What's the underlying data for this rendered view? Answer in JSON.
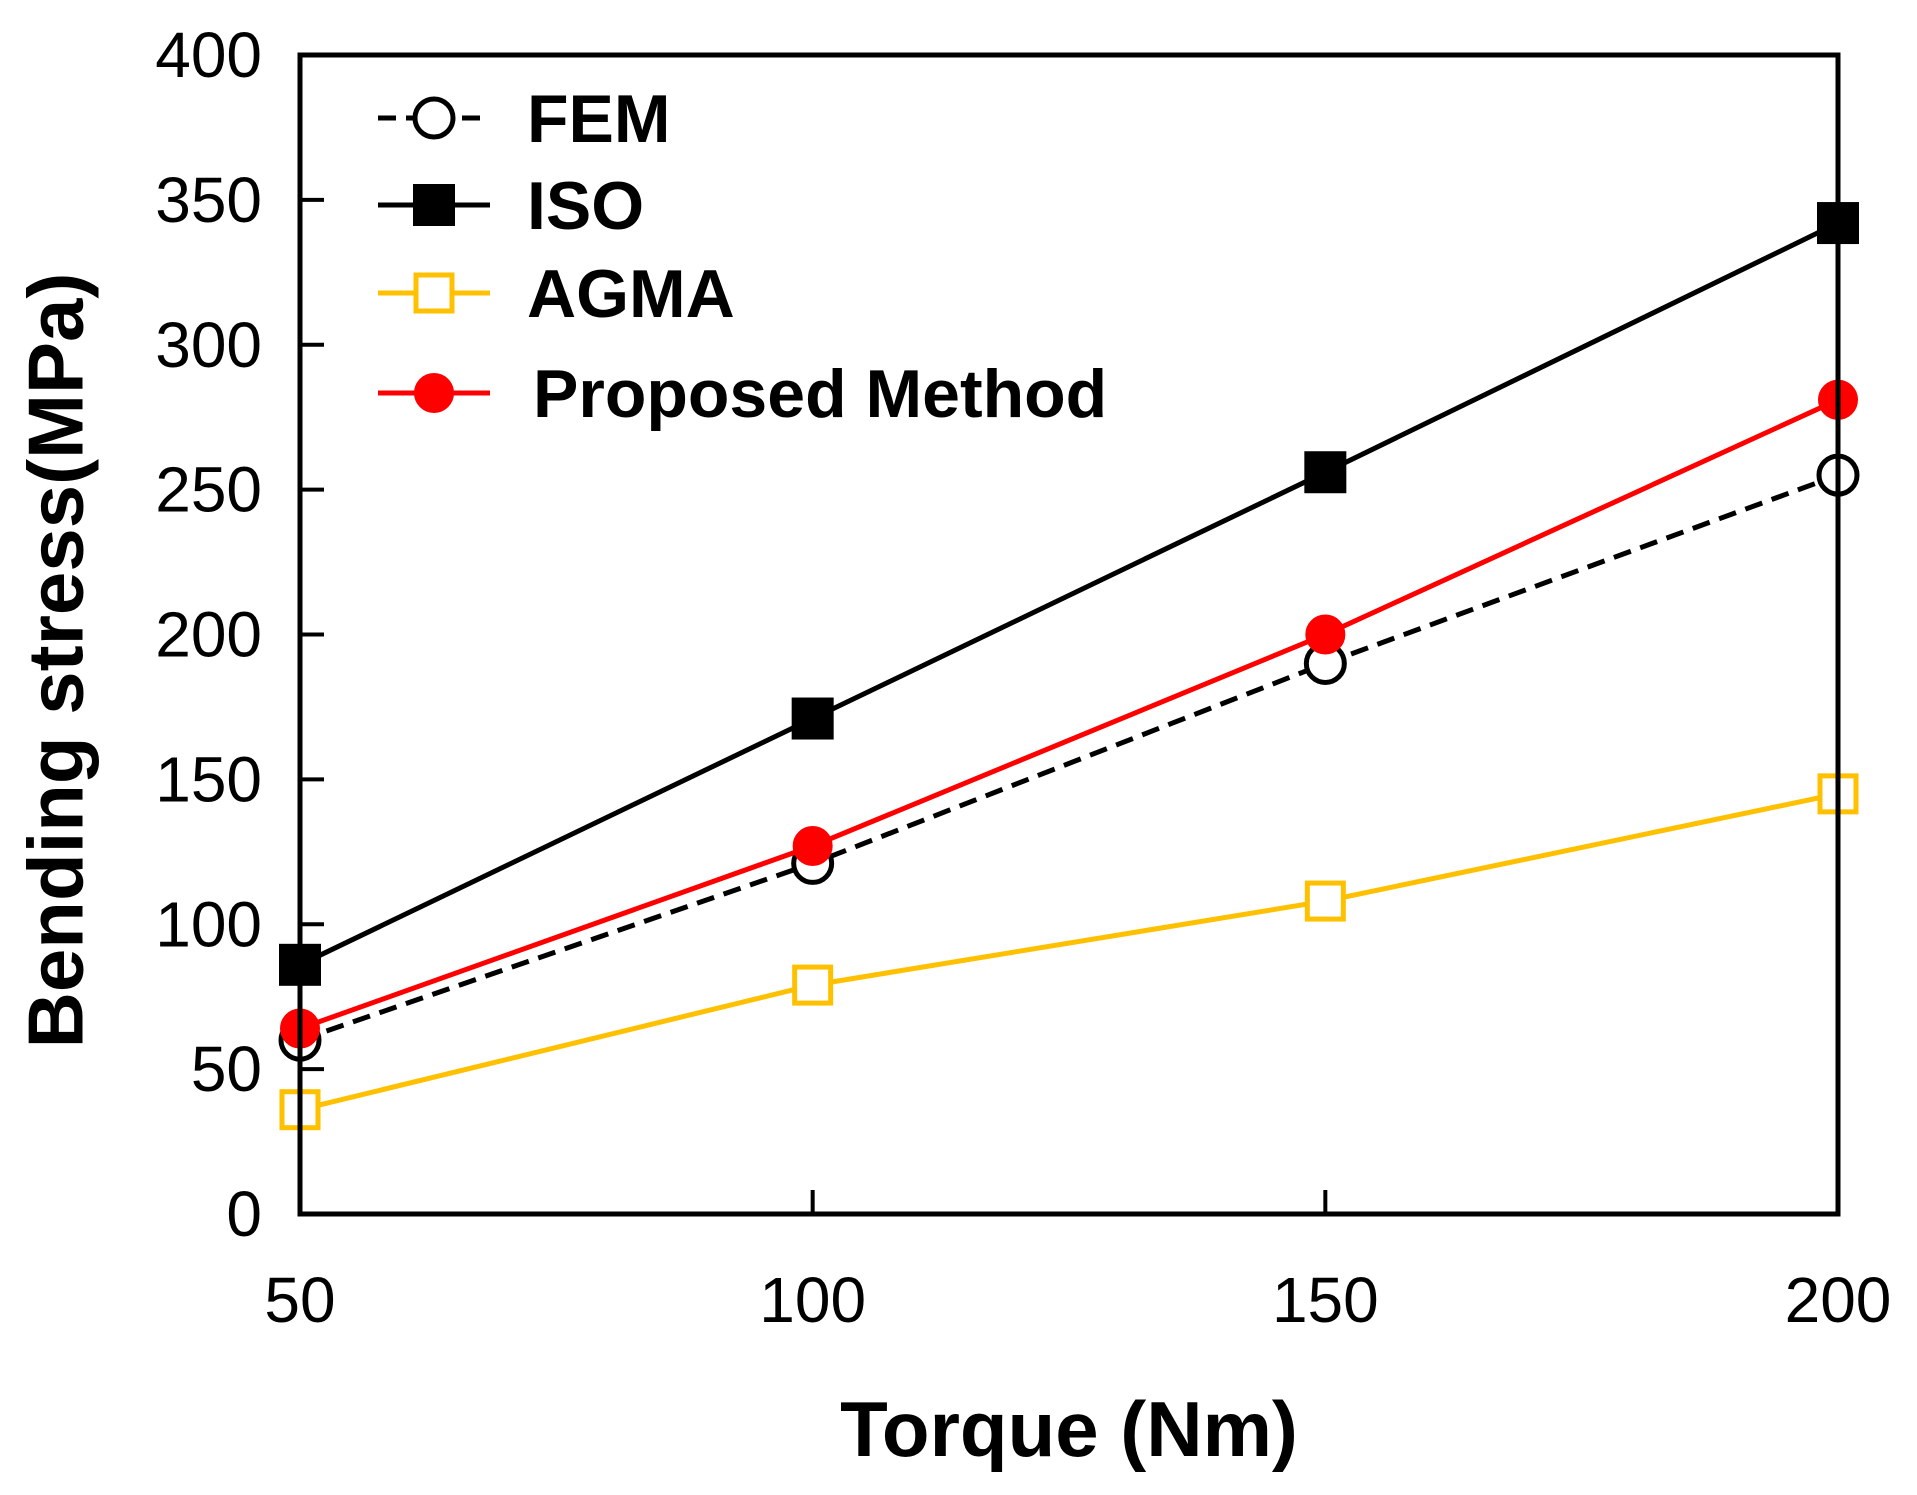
{
  "chart_data": {
    "type": "line",
    "xlabel": "Torque (Nm)",
    "ylabel": "Bending stress(MPa)",
    "xlim": [
      50,
      200
    ],
    "ylim": [
      0,
      400
    ],
    "x_ticks": [
      "50",
      "100",
      "150",
      "200"
    ],
    "y_ticks": [
      "0",
      "50",
      "100",
      "150",
      "200",
      "250",
      "300",
      "350",
      "400"
    ],
    "grid": false,
    "legend_position": "top-left",
    "x": [
      50,
      100,
      150,
      200
    ],
    "series": [
      {
        "name": "FEM",
        "values": [
          60,
          121,
          190,
          255
        ],
        "color": "#000000",
        "line_style": "dashed",
        "marker": "open-circle"
      },
      {
        "name": "ISO",
        "values": [
          86,
          171,
          256,
          342
        ],
        "color": "#000000",
        "line_style": "solid",
        "marker": "filled-square"
      },
      {
        "name": "AGMA",
        "values": [
          36,
          79,
          108,
          145
        ],
        "color": "#FFC000",
        "line_style": "solid",
        "marker": "open-square"
      },
      {
        "name": "Proposed Method",
        "values": [
          64,
          127,
          200,
          281
        ],
        "color": "#FF0000",
        "line_style": "solid",
        "marker": "filled-circle"
      }
    ]
  }
}
